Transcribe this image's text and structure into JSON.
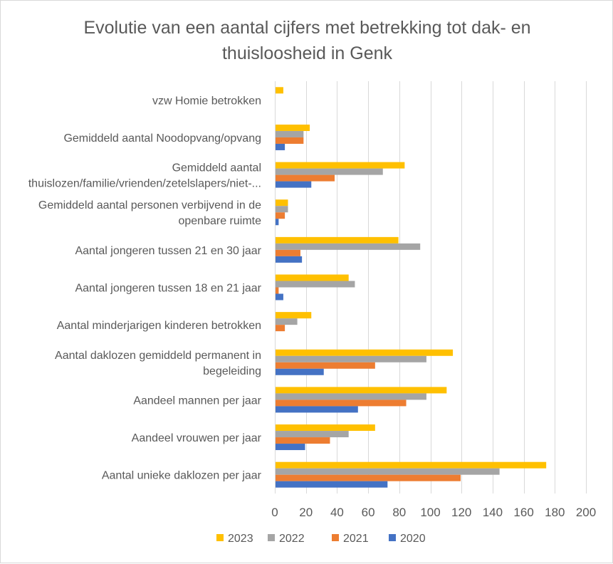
{
  "chart_data": {
    "type": "bar",
    "orientation": "horizontal",
    "title_lines": [
      "Evolutie van een aantal cijfers met betrekking tot dak- en",
      "thuisloosheid in Genk"
    ],
    "categories": [
      {
        "lines": [
          "vzw Homie betrokken"
        ]
      },
      {
        "lines": [
          "Gemiddeld aantal Noodopvang/opvang"
        ]
      },
      {
        "lines": [
          "Gemiddeld aantal",
          "thuislozen/familie/vrienden/zetelslapers/niet-..."
        ]
      },
      {
        "lines": [
          "Gemiddeld aantal personen verbijvend in de",
          "openbare ruimte"
        ]
      },
      {
        "lines": [
          "Aantal jongeren tussen 21 en 30 jaar"
        ]
      },
      {
        "lines": [
          "Aantal jongeren tussen 18 en 21 jaar"
        ]
      },
      {
        "lines": [
          "Aantal minderjarigen kinderen betrokken"
        ]
      },
      {
        "lines": [
          "Aantal daklozen gemiddeld permanent in",
          "begeleiding"
        ]
      },
      {
        "lines": [
          "Aandeel mannen per jaar"
        ]
      },
      {
        "lines": [
          "Aandeel vrouwen per jaar"
        ]
      },
      {
        "lines": [
          "Aantal unieke daklozen per jaar"
        ]
      }
    ],
    "series": [
      {
        "name": "2023",
        "color": "#ffc000",
        "values": [
          5,
          22,
          83,
          8,
          79,
          47,
          23,
          114,
          110,
          64,
          174
        ]
      },
      {
        "name": "2022",
        "color": "#a5a5a5",
        "values": [
          0,
          18,
          69,
          8,
          93,
          51,
          14,
          97,
          97,
          47,
          144
        ]
      },
      {
        "name": "2021",
        "color": "#ed7d31",
        "values": [
          0,
          18,
          38,
          6,
          16,
          2,
          6,
          64,
          84,
          35,
          119
        ]
      },
      {
        "name": "2020",
        "color": "#4472c4",
        "values": [
          0,
          6,
          23,
          2,
          17,
          5,
          0,
          31,
          53,
          19,
          72
        ]
      }
    ],
    "xlim": [
      0,
      200
    ],
    "xticks": [
      "0",
      "20",
      "40",
      "60",
      "80",
      "100",
      "120",
      "140",
      "160",
      "180",
      "200"
    ],
    "tick_step": 20,
    "grid": true,
    "legend_position": "bottom",
    "colors": {
      "grid": "#d9d9d9",
      "text": "#595959",
      "title": "#595959"
    }
  }
}
